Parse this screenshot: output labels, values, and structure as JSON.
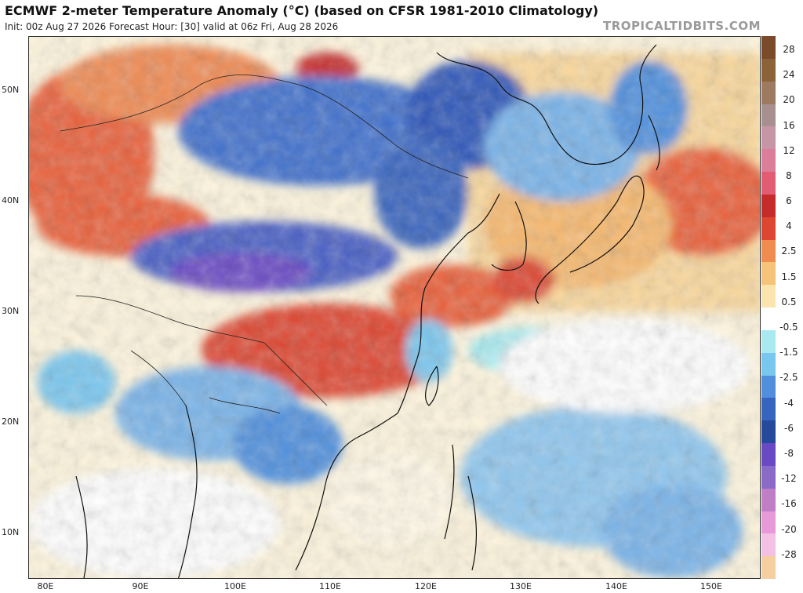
{
  "header": {
    "title": "ECMWF 2-meter Temperature Anomaly (°C) (based on CFSR 1981-2010 Climatology)",
    "subtitle": "Init: 00z Aug 27 2026   Forecast Hour: [30]   valid at 06z Fri, Aug 28 2026",
    "brand": "TROPICALTIDBITS.COM"
  },
  "map": {
    "lat_labels": [
      "50N",
      "40N",
      "30N",
      "20N",
      "10N"
    ],
    "lon_labels": [
      "80E",
      "90E",
      "100E",
      "110E",
      "120E",
      "130E",
      "140E",
      "150E"
    ],
    "colors": {
      "neutral": "#ffffff",
      "ocean_warm": "#fbe3b0",
      "warm": "#f6b86e",
      "hot": "#e8613a",
      "very_hot": "#c62b2b",
      "cool": "#8fd3ee",
      "cold": "#4f8fdc",
      "very_cold": "#2f57b8",
      "purple": "#6a49c4",
      "coast": "#111111"
    }
  },
  "colorbar": {
    "labels": [
      "28",
      "24",
      "20",
      "16",
      "12",
      "8",
      "6",
      "4",
      "2.5",
      "1.5",
      "0.5",
      "-0.5",
      "-1.5",
      "-2.5",
      "-4",
      "-6",
      "-8",
      "-12",
      "-16",
      "-20",
      "-28"
    ],
    "colors": [
      "#7a4a2a",
      "#8c6239",
      "#9e7a60",
      "#a89090",
      "#c796a6",
      "#db7e9a",
      "#e25d74",
      "#c62b2b",
      "#dd4631",
      "#f08c4f",
      "#f6c37a",
      "#fbe4ad",
      "#ffffff",
      "#a8eaf0",
      "#79c6ee",
      "#4f8fdc",
      "#3764bd",
      "#254a9c",
      "#6a49c4",
      "#8a6ac7",
      "#c07ec7",
      "#e79ad7",
      "#f3c1e3",
      "#f6cfa0"
    ]
  }
}
